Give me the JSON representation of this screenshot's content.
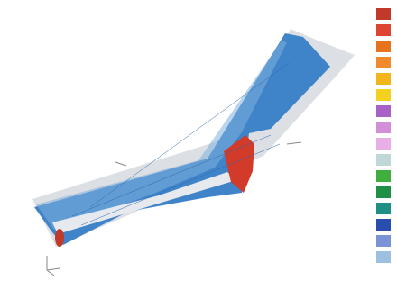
{
  "viewport": {
    "legend": {
      "colors": [
        "#c0392b",
        "#dd4433",
        "#e8731f",
        "#f08a2b",
        "#f3b51c",
        "#f2d11f",
        "#a861c4",
        "#d28fd8",
        "#e8aee6",
        "#bfd7d6",
        "#3fae3f",
        "#1f8f45",
        "#1f8f85",
        "#2a4db0",
        "#7a94d6",
        "#9ec0e0"
      ],
      "labels": [
        "",
        "",
        "",
        "",
        "",
        "",
        "",
        "",
        "",
        "",
        "",
        "",
        "",
        "",
        "",
        ""
      ]
    },
    "model_colors": {
      "shell": "#3f83c8",
      "shell_light": "#7fb0df",
      "edge": "#e6e9ee",
      "hot": "#d23a2a"
    },
    "footer_left": "",
    "footer_right": ""
  }
}
